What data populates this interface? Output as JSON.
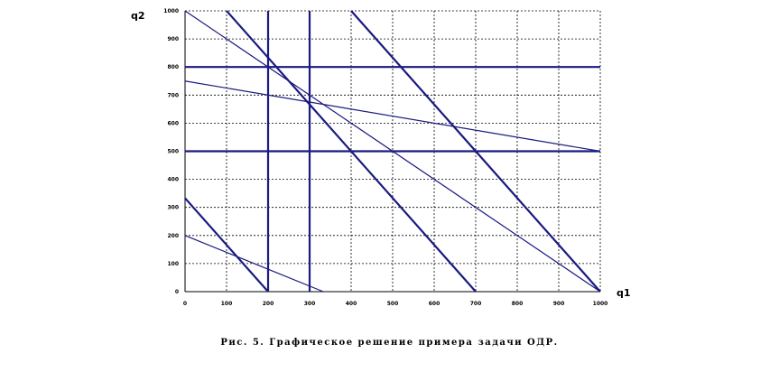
{
  "caption": "Рис. 5. Графическое решение примера задачи ОДР.",
  "chart_data": {
    "type": "line",
    "xlabel": "q1",
    "ylabel": "q2",
    "xlim": [
      0,
      1000
    ],
    "ylim": [
      0,
      1000
    ],
    "x_ticks": [
      0,
      100,
      200,
      300,
      400,
      500,
      600,
      700,
      800,
      900,
      1000
    ],
    "y_ticks": [
      0,
      100,
      200,
      300,
      400,
      500,
      600,
      700,
      800,
      900,
      1000
    ],
    "grid": "dashed",
    "line_color": "#1a1a80",
    "lines": [
      {
        "x": [
          0,
          1000
        ],
        "y": [
          1000,
          0
        ],
        "weight": "thin"
      },
      {
        "x": [
          100,
          700
        ],
        "y": [
          1000,
          0
        ],
        "weight": "bold"
      },
      {
        "x": [
          400,
          1000
        ],
        "y": [
          1000,
          0
        ],
        "weight": "bold"
      },
      {
        "x": [
          0,
          1000
        ],
        "y": [
          750,
          500
        ],
        "weight": "thin"
      },
      {
        "x": [
          0,
          1000
        ],
        "y": [
          800,
          800
        ],
        "weight": "bold"
      },
      {
        "x": [
          0,
          1000
        ],
        "y": [
          500,
          500
        ],
        "weight": "bold"
      },
      {
        "x": [
          200,
          200
        ],
        "y": [
          0,
          1000
        ],
        "weight": "bold"
      },
      {
        "x": [
          300,
          300
        ],
        "y": [
          0,
          1000
        ],
        "weight": "bold"
      },
      {
        "x": [
          0,
          200
        ],
        "y": [
          333,
          0
        ],
        "weight": "bold"
      },
      {
        "x": [
          0,
          333
        ],
        "y": [
          200,
          0
        ],
        "weight": "thin"
      }
    ]
  }
}
